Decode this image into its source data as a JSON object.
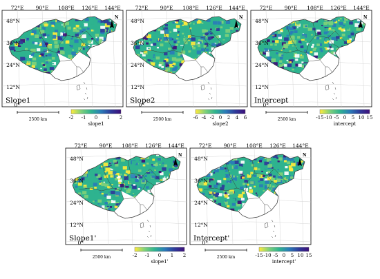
{
  "lon_labels": [
    "72°E",
    "90°E",
    "108°E",
    "126°E",
    "144°E"
  ],
  "lat_labels": [
    "48°N",
    "36°N",
    "24°N",
    "12°N",
    "0°"
  ],
  "scale_bar_label": "2500 km",
  "north_label": "N",
  "panels": [
    {
      "id": "slope1",
      "panel_label": "Slope1",
      "colorbar_ticks": [
        "-2",
        "-1",
        "0",
        "1",
        "2"
      ],
      "colorbar_title": "slope1"
    },
    {
      "id": "slope2",
      "panel_label": "Slope2",
      "colorbar_ticks": [
        "-6",
        "-4",
        "-2",
        "0",
        "2",
        "4",
        "6"
      ],
      "colorbar_title": "slope2"
    },
    {
      "id": "intercept",
      "panel_label": "Intercept",
      "colorbar_ticks": [
        "-15",
        "-10",
        "-5",
        "0",
        "5",
        "10",
        "15"
      ],
      "colorbar_title": "intercept"
    },
    {
      "id": "slope1-prime",
      "panel_label": "Slope1'",
      "colorbar_ticks": [
        "-2",
        "-1",
        "0",
        "1",
        "2"
      ],
      "colorbar_title": "slope1'"
    },
    {
      "id": "intercept-prime",
      "panel_label": "Intercept'",
      "colorbar_ticks": [
        "-15",
        "-10",
        "-5",
        "0",
        "5",
        "10",
        "15"
      ],
      "colorbar_title": "intercept'"
    }
  ],
  "colors": {
    "colormap": [
      "#ffeb3b",
      "#7fd17a",
      "#2eb38f",
      "#2a7cb8",
      "#2e3a9a",
      "#3d0f7a"
    ],
    "boundary": "#333333",
    "nodata": "#ffffff"
  }
}
